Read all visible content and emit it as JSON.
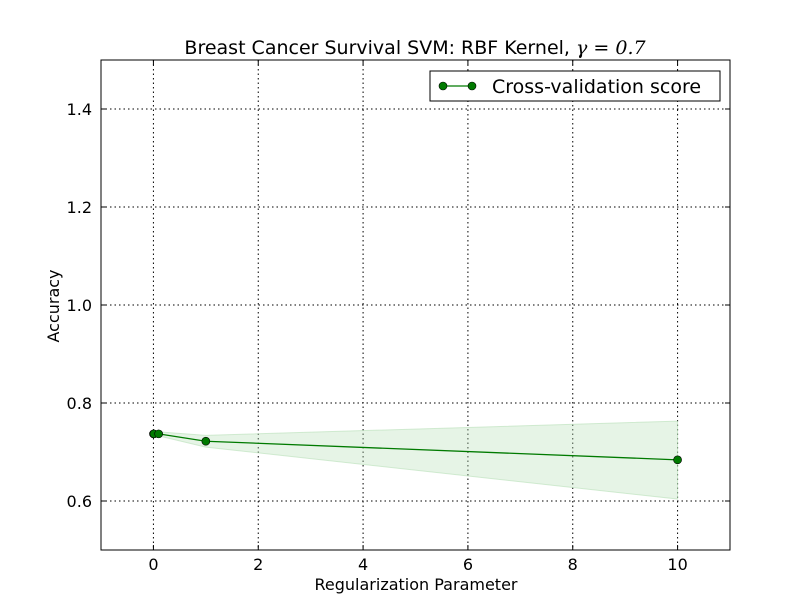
{
  "chart_data": {
    "type": "line",
    "title": "Breast Cancer Survival SVM: RBF Kernel, ",
    "title_math": "γ = 0.7",
    "xlabel": "Regularization Parameter",
    "ylabel": "Accuracy",
    "xlim": [
      -1,
      11
    ],
    "ylim": [
      0.5,
      1.5
    ],
    "xticks": [
      0,
      2,
      4,
      6,
      8,
      10
    ],
    "yticks": [
      0.6,
      0.8,
      1.0,
      1.2,
      1.4
    ],
    "xtick_labels": [
      "0",
      "2",
      "4",
      "6",
      "8",
      "10"
    ],
    "ytick_labels": [
      "0.6",
      "0.8",
      "1.0",
      "1.2",
      "1.4"
    ],
    "grid": true,
    "legend_position": "top-right",
    "series": [
      {
        "name": "Cross-validation score",
        "color": "#007a00",
        "marker": "circle",
        "x": [
          0.001,
          0.01,
          0.1,
          1,
          10
        ],
        "y": [
          0.737,
          0.737,
          0.737,
          0.722,
          0.684
        ],
        "band_lower": [
          0.733,
          0.733,
          0.733,
          0.71,
          0.604
        ],
        "band_upper": [
          0.741,
          0.741,
          0.741,
          0.734,
          0.763
        ],
        "band_color": "#b8e0b8"
      }
    ]
  }
}
